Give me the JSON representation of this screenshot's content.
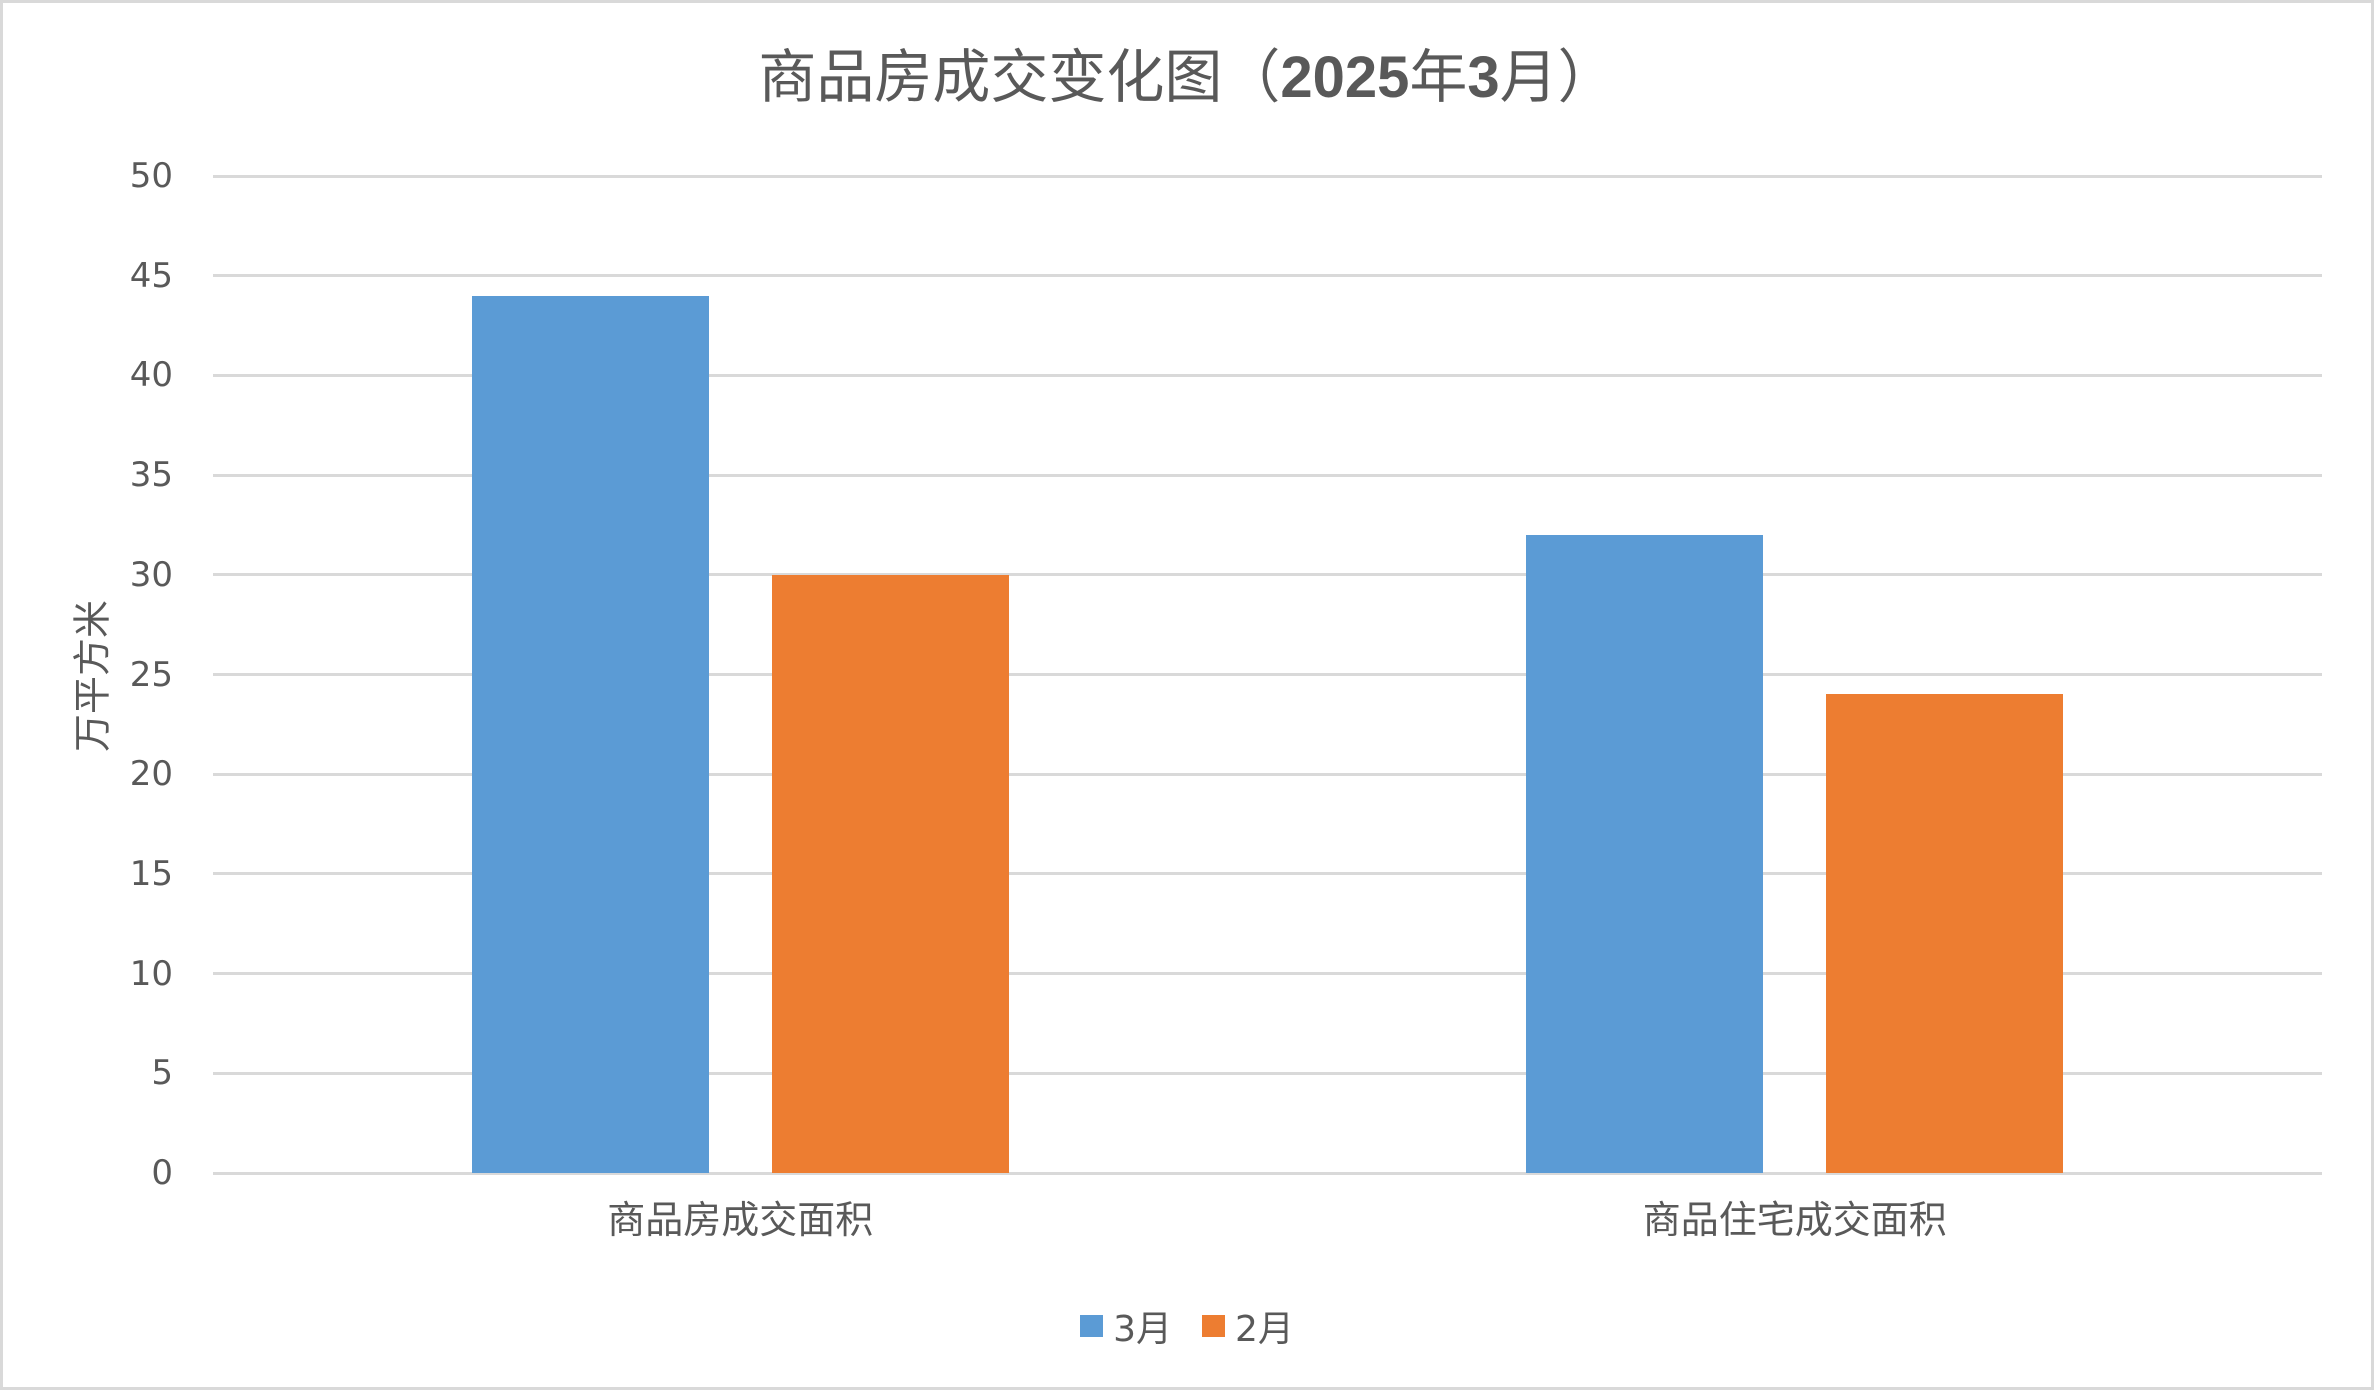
{
  "chart_data": {
    "type": "bar",
    "title": "商品房成交变化图（2025年3月）",
    "title_parts": {
      "prefix": "商品房成交变化图（",
      "year": "2025",
      "year_unit": "年",
      "month": "3",
      "month_unit": "月",
      "suffix": "）"
    },
    "xlabel": "",
    "ylabel": "万平方米",
    "ylim": [
      0,
      50
    ],
    "yticks": [
      0,
      5,
      10,
      15,
      20,
      25,
      30,
      35,
      40,
      45,
      50
    ],
    "grid": true,
    "legend_position": "bottom",
    "categories": [
      "商品房成交面积",
      "商品住宅成交面积"
    ],
    "series": [
      {
        "name": "3月",
        "color": "#5b9bd5",
        "values": [
          44,
          32
        ]
      },
      {
        "name": "2月",
        "color": "#ed7d31",
        "values": [
          30,
          24
        ]
      }
    ]
  },
  "colors": {
    "text": "#595959",
    "grid": "#d9d9d9",
    "border": "#d9d9d9"
  }
}
